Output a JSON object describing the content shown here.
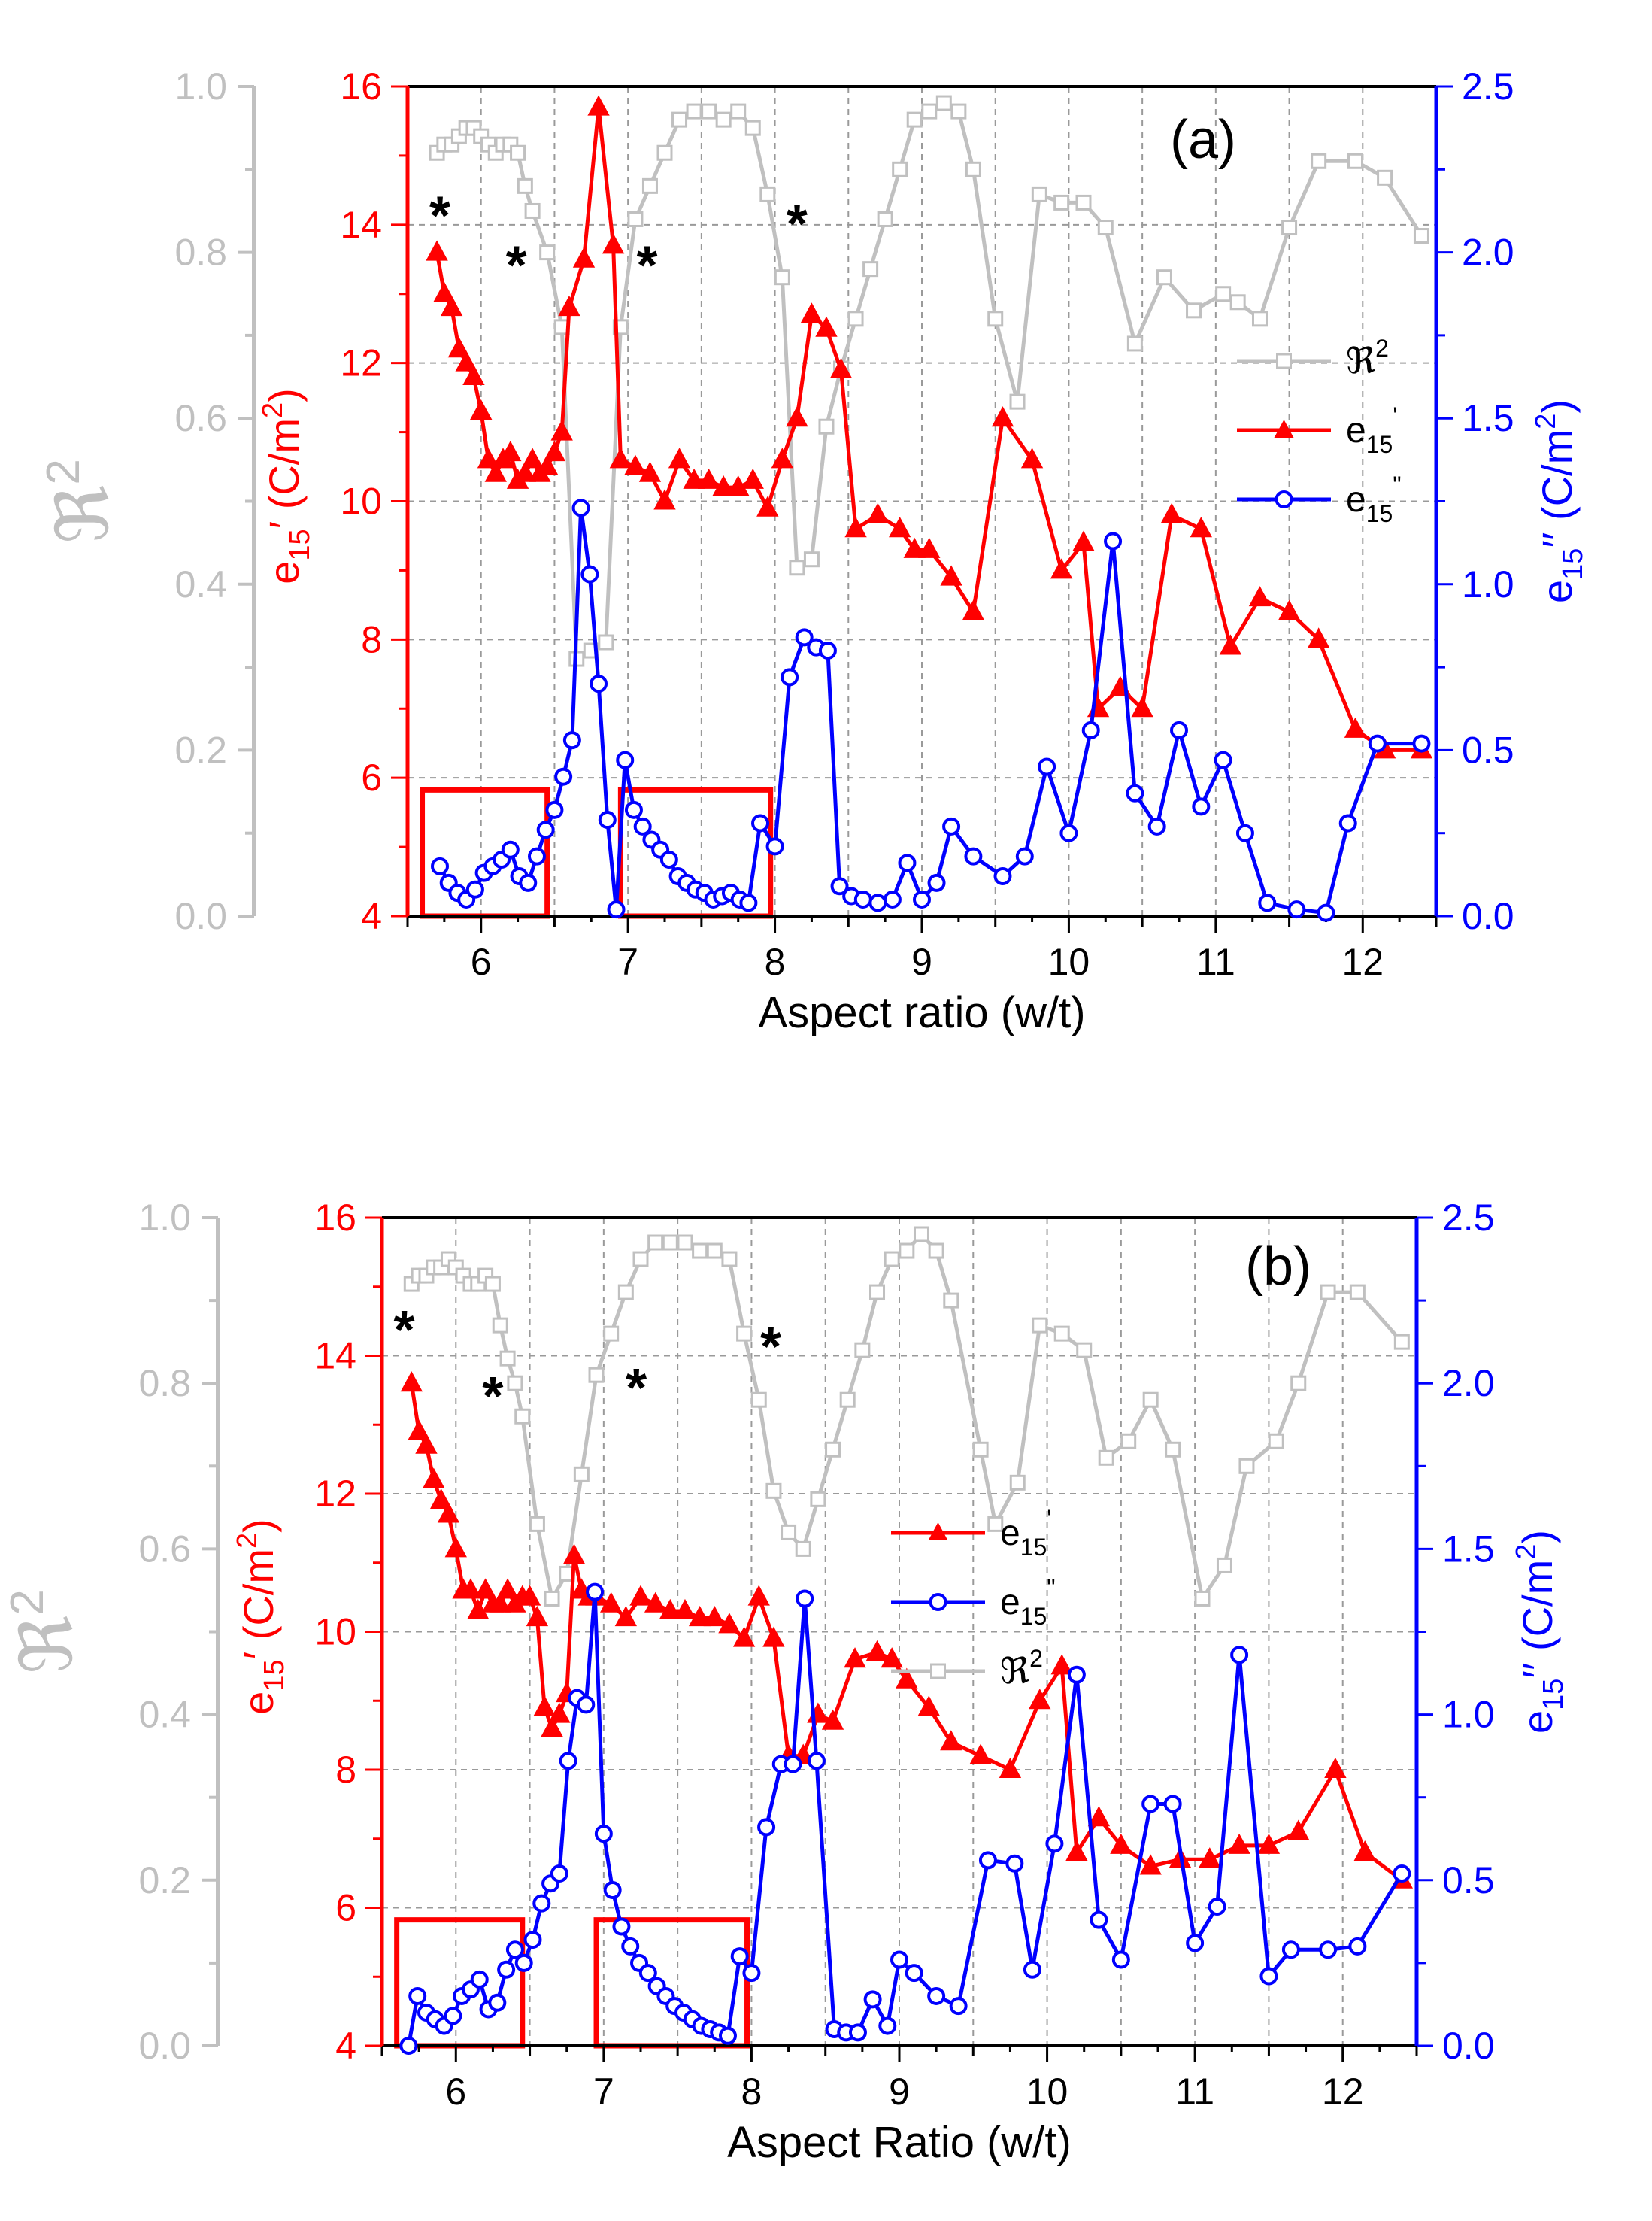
{
  "chart_data": [
    {
      "type": "line",
      "panel_label": "(a)",
      "xlabel": "Aspect ratio (w/t)",
      "xlim": [
        5.5,
        12.5
      ],
      "x_ticks": [
        "6",
        "7",
        "8",
        "9",
        "10",
        "11",
        "12"
      ],
      "left_outer_axis": {
        "label": "ℜ",
        "label_sup": "2",
        "ylim": [
          0.0,
          1.0
        ],
        "ticks": [
          "0.0",
          "0.2",
          "0.4",
          "0.6",
          "0.8",
          "1.0"
        ]
      },
      "left_inner_axis": {
        "label": "e",
        "label_sub": "15",
        "label_prime": "′",
        "unit": " (C/m",
        "unit_sup": "2",
        "unit_close": ")",
        "ylim": [
          4,
          16
        ],
        "ticks": [
          "4",
          "6",
          "8",
          "10",
          "12",
          "14",
          "16"
        ]
      },
      "right_axis": {
        "label": "e",
        "label_sub": "15",
        "label_prime": "′′",
        "unit": " (C/m",
        "unit_sup": "2",
        "unit_close": ")",
        "ylim": [
          0.0,
          2.5
        ],
        "ticks": [
          "0.0",
          "0.5",
          "1.0",
          "1.5",
          "2.0",
          "2.5"
        ]
      },
      "legend": [
        {
          "series": "R2",
          "label": "ℜ",
          "sup": "2"
        },
        {
          "series": "e15p",
          "label": "e",
          "sub": "15",
          "sup": "'"
        },
        {
          "series": "e15pp",
          "label": "e",
          "sub": "15",
          "sup": "\""
        }
      ],
      "asterisks": [
        {
          "x": 5.72,
          "R2": 0.86,
          "text": "*"
        },
        {
          "x": 6.24,
          "R2": 0.8,
          "text": "*"
        },
        {
          "x": 7.13,
          "R2": 0.8,
          "text": "*"
        },
        {
          "x": 8.15,
          "R2": 0.85,
          "text": "*"
        }
      ],
      "highlight_boxes": [
        {
          "x": [
            5.6,
            6.45
          ],
          "e15pp": [
            0.0,
            0.38
          ]
        },
        {
          "x": [
            6.95,
            7.97
          ],
          "e15pp": [
            0.0,
            0.38
          ]
        }
      ],
      "series": [
        {
          "name": "R2",
          "color": "#c0c0c0",
          "axis": "R2",
          "x": [
            5.7,
            5.75,
            5.8,
            5.85,
            5.9,
            5.95,
            6.0,
            6.05,
            6.1,
            6.15,
            6.2,
            6.25,
            6.3,
            6.35,
            6.45,
            6.55,
            6.65,
            6.75,
            6.85,
            6.95,
            7.05,
            7.15,
            7.25,
            7.35,
            7.45,
            7.55,
            7.65,
            7.75,
            7.85,
            7.95,
            8.05,
            8.15,
            8.25,
            8.35,
            8.45,
            8.55,
            8.65,
            8.75,
            8.85,
            8.95,
            9.05,
            9.15,
            9.25,
            9.35,
            9.5,
            9.65,
            9.8,
            9.95,
            10.1,
            10.25,
            10.45,
            10.65,
            10.85,
            11.05,
            11.15,
            11.3,
            11.5,
            11.7,
            11.95,
            12.15,
            12.4
          ],
          "values": [
            0.92,
            0.93,
            0.93,
            0.94,
            0.95,
            0.95,
            0.94,
            0.93,
            0.92,
            0.93,
            0.93,
            0.92,
            0.88,
            0.85,
            0.8,
            0.71,
            0.31,
            0.32,
            0.33,
            0.71,
            0.84,
            0.88,
            0.92,
            0.96,
            0.97,
            0.97,
            0.96,
            0.97,
            0.95,
            0.87,
            0.77,
            0.42,
            0.43,
            0.59,
            0.66,
            0.72,
            0.78,
            0.84,
            0.9,
            0.96,
            0.97,
            0.98,
            0.97,
            0.9,
            0.72,
            0.62,
            0.87,
            0.86,
            0.86,
            0.83,
            0.69,
            0.77,
            0.73,
            0.75,
            0.74,
            0.72,
            0.83,
            0.91,
            0.91,
            0.89,
            0.82
          ]
        },
        {
          "name": "e15p",
          "color": "#ff0000",
          "axis": "e15p",
          "x": [
            5.7,
            5.75,
            5.8,
            5.85,
            5.9,
            5.95,
            6.0,
            6.05,
            6.1,
            6.15,
            6.2,
            6.25,
            6.3,
            6.35,
            6.4,
            6.45,
            6.5,
            6.55,
            6.6,
            6.7,
            6.8,
            6.9,
            6.95,
            7.05,
            7.15,
            7.25,
            7.35,
            7.45,
            7.55,
            7.65,
            7.75,
            7.85,
            7.95,
            8.05,
            8.15,
            8.25,
            8.35,
            8.45,
            8.55,
            8.7,
            8.85,
            8.95,
            9.05,
            9.2,
            9.35,
            9.55,
            9.75,
            9.95,
            10.1,
            10.2,
            10.35,
            10.5,
            10.7,
            10.9,
            11.1,
            11.3,
            11.5,
            11.7,
            11.95,
            12.15,
            12.4
          ],
          "values": [
            13.6,
            13.0,
            12.8,
            12.2,
            12.0,
            11.8,
            11.3,
            10.6,
            10.4,
            10.6,
            10.7,
            10.3,
            10.4,
            10.6,
            10.4,
            10.5,
            10.7,
            11.0,
            12.8,
            13.5,
            15.7,
            13.7,
            10.6,
            10.5,
            10.4,
            10.0,
            10.6,
            10.3,
            10.3,
            10.2,
            10.2,
            10.3,
            9.9,
            10.6,
            11.2,
            12.7,
            12.5,
            11.9,
            9.6,
            9.8,
            9.6,
            9.3,
            9.3,
            8.9,
            8.4,
            11.2,
            10.6,
            9.0,
            9.4,
            7.0,
            7.3,
            7.0,
            9.8,
            9.6,
            7.9,
            8.6,
            8.4,
            8.0,
            6.7,
            6.4,
            6.4
          ]
        },
        {
          "name": "e15pp",
          "color": "#0000ff",
          "axis": "e15pp",
          "x": [
            5.72,
            5.78,
            5.84,
            5.9,
            5.96,
            6.02,
            6.08,
            6.14,
            6.2,
            6.26,
            6.32,
            6.38,
            6.44,
            6.5,
            6.56,
            6.62,
            6.68,
            6.74,
            6.8,
            6.86,
            6.92,
            6.98,
            7.04,
            7.1,
            7.16,
            7.22,
            7.28,
            7.34,
            7.4,
            7.46,
            7.52,
            7.58,
            7.64,
            7.7,
            7.76,
            7.82,
            7.9,
            8.0,
            8.1,
            8.2,
            8.28,
            8.36,
            8.44,
            8.52,
            8.6,
            8.7,
            8.8,
            8.9,
            9.0,
            9.1,
            9.2,
            9.35,
            9.55,
            9.7,
            9.85,
            10.0,
            10.15,
            10.3,
            10.45,
            10.6,
            10.75,
            10.9,
            11.05,
            11.2,
            11.35,
            11.55,
            11.75,
            11.9,
            12.1,
            12.4
          ],
          "values": [
            0.15,
            0.1,
            0.07,
            0.05,
            0.08,
            0.13,
            0.15,
            0.17,
            0.2,
            0.12,
            0.1,
            0.18,
            0.26,
            0.32,
            0.42,
            0.53,
            1.23,
            1.03,
            0.7,
            0.29,
            0.02,
            0.47,
            0.32,
            0.27,
            0.23,
            0.2,
            0.17,
            0.12,
            0.1,
            0.08,
            0.07,
            0.05,
            0.06,
            0.07,
            0.05,
            0.04,
            0.28,
            0.21,
            0.72,
            0.84,
            0.81,
            0.8,
            0.09,
            0.06,
            0.05,
            0.04,
            0.05,
            0.16,
            0.05,
            0.1,
            0.27,
            0.18,
            0.12,
            0.18,
            0.45,
            0.25,
            0.56,
            1.13,
            0.37,
            0.27,
            0.56,
            0.33,
            0.47,
            0.25,
            0.04,
            0.02,
            0.01,
            0.28,
            0.52,
            0.52
          ]
        }
      ]
    },
    {
      "type": "line",
      "panel_label": "(b)",
      "xlabel": "Aspect Ratio (w/t)",
      "xlim": [
        5.5,
        12.5
      ],
      "x_ticks": [
        "6",
        "7",
        "8",
        "9",
        "10",
        "11",
        "12"
      ],
      "left_outer_axis": {
        "label": "ℜ",
        "label_sup": "2",
        "ylim": [
          0.0,
          1.0
        ],
        "ticks": [
          "0.0",
          "0.2",
          "0.4",
          "0.6",
          "0.8",
          "1.0"
        ]
      },
      "left_inner_axis": {
        "label": "e",
        "label_sub": "15",
        "label_prime": "′",
        "unit": " (C/m",
        "unit_sup": "2",
        "unit_close": ")",
        "ylim": [
          4,
          16
        ],
        "ticks": [
          "4",
          "6",
          "8",
          "10",
          "12",
          "14",
          "16"
        ]
      },
      "right_axis": {
        "label": "e",
        "label_sub": "15",
        "label_prime": "′′",
        "unit": " (C/m",
        "unit_sup": "2",
        "unit_close": ")",
        "ylim": [
          0.0,
          2.5
        ],
        "ticks": [
          "0.0",
          "0.5",
          "1.0",
          "1.5",
          "2.0",
          "2.5"
        ]
      },
      "legend": [
        {
          "series": "e15p",
          "label": "e",
          "sub": "15",
          "sup": "'"
        },
        {
          "series": "e15pp",
          "label": "e",
          "sub": "15",
          "sup": "\""
        },
        {
          "series": "R2",
          "label": "ℜ",
          "sup": "2"
        }
      ],
      "asterisks": [
        {
          "x": 5.65,
          "R2": 0.88,
          "text": "*"
        },
        {
          "x": 6.25,
          "R2": 0.8,
          "text": "*"
        },
        {
          "x": 7.22,
          "R2": 0.81,
          "text": "*"
        },
        {
          "x": 8.13,
          "R2": 0.86,
          "text": "*"
        }
      ],
      "highlight_boxes": [
        {
          "x": [
            5.6,
            6.45
          ],
          "e15pp": [
            0.0,
            0.38
          ]
        },
        {
          "x": [
            6.95,
            7.97
          ],
          "e15pp": [
            0.0,
            0.38
          ]
        }
      ],
      "series": [
        {
          "name": "R2",
          "color": "#c0c0c0",
          "axis": "R2",
          "x": [
            5.7,
            5.75,
            5.8,
            5.85,
            5.9,
            5.95,
            6.0,
            6.05,
            6.1,
            6.15,
            6.2,
            6.25,
            6.3,
            6.35,
            6.4,
            6.45,
            6.55,
            6.65,
            6.75,
            6.85,
            6.95,
            7.05,
            7.15,
            7.25,
            7.35,
            7.45,
            7.55,
            7.65,
            7.75,
            7.85,
            7.95,
            8.05,
            8.15,
            8.25,
            8.35,
            8.45,
            8.55,
            8.65,
            8.75,
            8.85,
            8.95,
            9.05,
            9.15,
            9.25,
            9.35,
            9.55,
            9.65,
            9.8,
            9.95,
            10.1,
            10.25,
            10.4,
            10.55,
            10.7,
            10.85,
            11.05,
            11.2,
            11.35,
            11.55,
            11.7,
            11.9,
            12.1,
            12.4
          ],
          "values": [
            0.92,
            0.93,
            0.93,
            0.94,
            0.94,
            0.95,
            0.94,
            0.93,
            0.92,
            0.92,
            0.93,
            0.92,
            0.87,
            0.83,
            0.8,
            0.76,
            0.63,
            0.54,
            0.57,
            0.69,
            0.81,
            0.86,
            0.91,
            0.95,
            0.97,
            0.97,
            0.97,
            0.96,
            0.96,
            0.95,
            0.86,
            0.78,
            0.67,
            0.62,
            0.6,
            0.66,
            0.72,
            0.78,
            0.84,
            0.91,
            0.95,
            0.96,
            0.98,
            0.96,
            0.9,
            0.72,
            0.63,
            0.68,
            0.87,
            0.86,
            0.84,
            0.71,
            0.73,
            0.78,
            0.72,
            0.54,
            0.58,
            0.7,
            0.73,
            0.8,
            0.91,
            0.91,
            0.85
          ]
        },
        {
          "name": "e15p",
          "color": "#ff0000",
          "axis": "e15p",
          "x": [
            5.7,
            5.75,
            5.8,
            5.85,
            5.9,
            5.95,
            6.0,
            6.05,
            6.1,
            6.15,
            6.2,
            6.25,
            6.3,
            6.35,
            6.4,
            6.45,
            6.5,
            6.55,
            6.6,
            6.65,
            6.7,
            6.75,
            6.8,
            6.85,
            6.9,
            6.95,
            7.05,
            7.15,
            7.25,
            7.35,
            7.45,
            7.55,
            7.65,
            7.75,
            7.85,
            7.95,
            8.05,
            8.15,
            8.25,
            8.35,
            8.45,
            8.55,
            8.7,
            8.85,
            8.95,
            9.05,
            9.2,
            9.35,
            9.55,
            9.75,
            9.95,
            10.1,
            10.2,
            10.35,
            10.5,
            10.7,
            10.9,
            11.1,
            11.3,
            11.5,
            11.7,
            11.95,
            12.15,
            12.4
          ],
          "values": [
            13.6,
            12.9,
            12.7,
            12.2,
            11.9,
            11.7,
            11.2,
            10.6,
            10.6,
            10.3,
            10.6,
            10.4,
            10.4,
            10.6,
            10.4,
            10.5,
            10.5,
            10.2,
            8.9,
            8.6,
            8.8,
            9.1,
            11.1,
            10.6,
            10.5,
            10.5,
            10.4,
            10.2,
            10.5,
            10.4,
            10.3,
            10.3,
            10.2,
            10.2,
            10.1,
            9.9,
            10.5,
            9.9,
            8.2,
            8.2,
            8.8,
            8.7,
            9.6,
            9.7,
            9.6,
            9.3,
            8.9,
            8.4,
            8.2,
            8.0,
            9.0,
            9.5,
            6.8,
            7.3,
            6.9,
            6.6,
            6.7,
            6.7,
            6.9,
            6.9,
            7.1,
            8.0,
            6.8,
            6.4
          ]
        },
        {
          "name": "e15pp",
          "color": "#0000ff",
          "axis": "e15pp",
          "x": [
            5.68,
            5.74,
            5.8,
            5.86,
            5.92,
            5.98,
            6.04,
            6.1,
            6.16,
            6.22,
            6.28,
            6.34,
            6.4,
            6.46,
            6.52,
            6.58,
            6.64,
            6.7,
            6.76,
            6.82,
            6.88,
            6.94,
            7.0,
            7.06,
            7.12,
            7.18,
            7.24,
            7.3,
            7.36,
            7.42,
            7.48,
            7.54,
            7.6,
            7.66,
            7.72,
            7.78,
            7.84,
            7.92,
            8.0,
            8.1,
            8.2,
            8.28,
            8.36,
            8.44,
            8.56,
            8.64,
            8.72,
            8.82,
            8.92,
            9.0,
            9.1,
            9.25,
            9.4,
            9.6,
            9.78,
            9.9,
            10.05,
            10.2,
            10.35,
            10.5,
            10.7,
            10.85,
            11.0,
            11.15,
            11.3,
            11.5,
            11.65,
            11.9,
            12.1,
            12.4
          ],
          "values": [
            0.0,
            0.15,
            0.1,
            0.08,
            0.06,
            0.09,
            0.15,
            0.17,
            0.2,
            0.11,
            0.13,
            0.23,
            0.29,
            0.25,
            0.32,
            0.43,
            0.49,
            0.52,
            0.86,
            1.05,
            1.03,
            1.37,
            0.64,
            0.47,
            0.36,
            0.3,
            0.25,
            0.22,
            0.18,
            0.15,
            0.12,
            0.1,
            0.08,
            0.06,
            0.05,
            0.04,
            0.03,
            0.27,
            0.22,
            0.66,
            0.85,
            0.85,
            1.35,
            0.86,
            0.05,
            0.04,
            0.04,
            0.14,
            0.06,
            0.26,
            0.22,
            0.15,
            0.12,
            0.56,
            0.55,
            0.23,
            0.61,
            1.12,
            0.38,
            0.26,
            0.73,
            0.73,
            0.31,
            0.42,
            1.18,
            0.21,
            0.29,
            0.29,
            0.3,
            0.52
          ]
        }
      ]
    }
  ]
}
